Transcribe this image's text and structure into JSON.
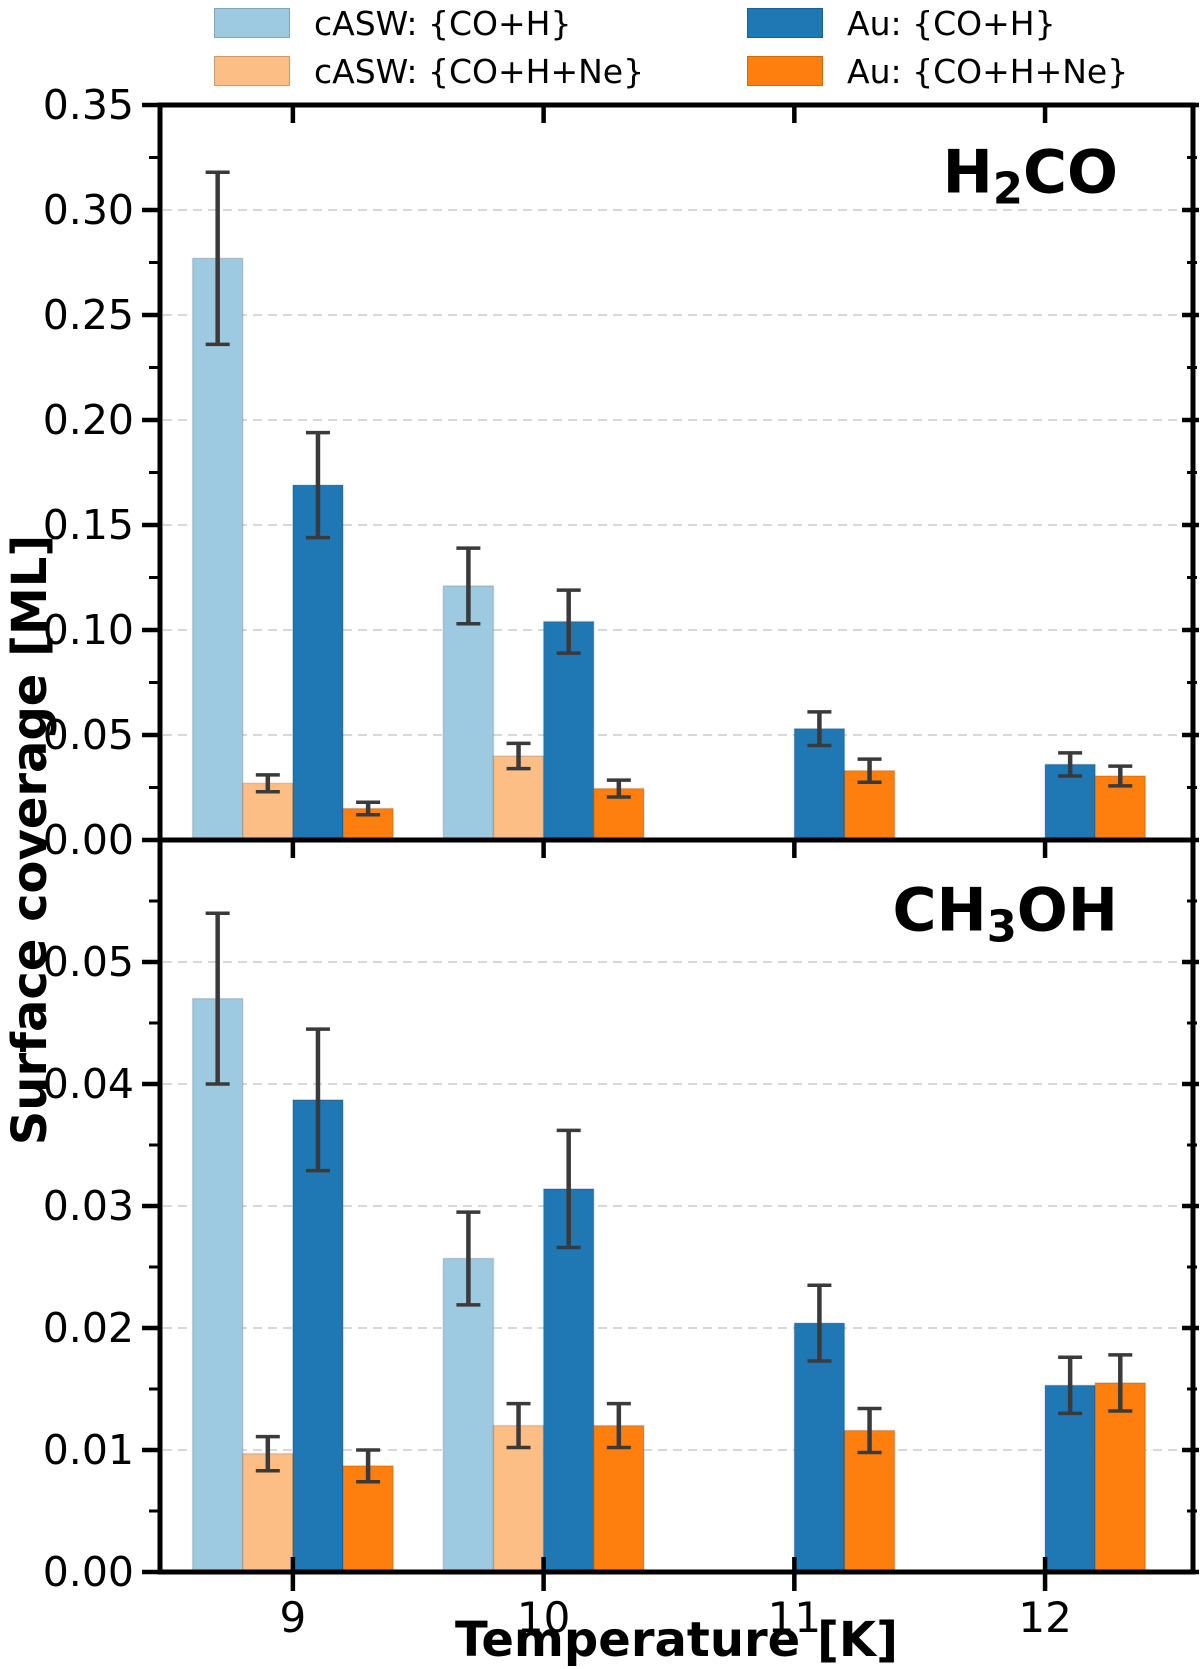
{
  "figure": {
    "x_axis_label": "Temperature [K]",
    "y_axis_label": "Surface coverage [ML]",
    "x_tick_labels": [
      "9",
      "10",
      "11",
      "12"
    ],
    "legend_position": "top"
  },
  "colors": {
    "casw_coh": "#9ecae1",
    "casw_cohne": "#fdbe85",
    "au_coh": "#1f77b4",
    "au_cohne": "#ff7f0e",
    "errorbar": "#3a3a3a",
    "grid": "#d8d8d8",
    "axis": "#000000"
  },
  "legend": {
    "items": [
      {
        "label": "cASW: {CO+H}",
        "color": "casw_coh"
      },
      {
        "label": "cASW: {CO+H+Ne}",
        "color": "casw_cohne"
      },
      {
        "label": "Au: {CO+H}",
        "color": "au_coh"
      },
      {
        "label": "Au: {CO+H+Ne}",
        "color": "au_cohne"
      }
    ]
  },
  "chart_data": [
    {
      "type": "bar",
      "panel": "top",
      "title": "H2CO",
      "formula": {
        "pre": "H",
        "sub": "2",
        "post": "CO"
      },
      "xlabel": "Temperature [K]",
      "ylabel": "Surface coverage [ML]",
      "x": [
        9,
        10,
        11,
        12
      ],
      "xlim": [
        8.47,
        12.59
      ],
      "ylim": [
        0,
        0.35
      ],
      "ytick_values": [
        0,
        0.05,
        0.1,
        0.15,
        0.2,
        0.25,
        0.3,
        0.35
      ],
      "ytick_labels": [
        "0.00",
        "0.05",
        "0.10",
        "0.15",
        "0.20",
        "0.25",
        "0.30",
        "0.35"
      ],
      "bar_width": 0.2,
      "bar_offsets": [
        -0.3,
        -0.1,
        0.1,
        0.3
      ],
      "grid": "horizontal-dashed",
      "series": [
        {
          "name": "cASW: {CO+H}",
          "color": "casw_coh",
          "values": [
            0.277,
            0.121,
            null,
            null
          ],
          "errors": [
            0.041,
            0.018,
            null,
            null
          ]
        },
        {
          "name": "cASW: {CO+H+Ne}",
          "color": "casw_cohne",
          "values": [
            0.027,
            0.04,
            null,
            null
          ],
          "errors": [
            0.004,
            0.006,
            null,
            null
          ]
        },
        {
          "name": "Au: {CO+H}",
          "color": "au_coh",
          "values": [
            0.169,
            0.104,
            0.053,
            0.036
          ],
          "errors": [
            0.025,
            0.015,
            0.008,
            0.0055
          ]
        },
        {
          "name": "Au: {CO+H+Ne}",
          "color": "au_cohne",
          "values": [
            0.015,
            0.0245,
            0.033,
            0.0305
          ],
          "errors": [
            0.003,
            0.004,
            0.0055,
            0.0047
          ]
        }
      ]
    },
    {
      "type": "bar",
      "panel": "bottom",
      "title": "CH3OH",
      "formula": {
        "pre": "CH",
        "sub": "3",
        "post": "OH"
      },
      "xlabel": "Temperature [K]",
      "ylabel": "Surface coverage [ML]",
      "x": [
        9,
        10,
        11,
        12
      ],
      "xlim": [
        8.47,
        12.59
      ],
      "ylim": [
        0,
        0.06
      ],
      "ytick_values": [
        0,
        0.01,
        0.02,
        0.03,
        0.04,
        0.05
      ],
      "ytick_labels": [
        "0.00",
        "0.01",
        "0.02",
        "0.03",
        "0.04",
        "0.05"
      ],
      "bar_width": 0.2,
      "bar_offsets": [
        -0.3,
        -0.1,
        0.1,
        0.3
      ],
      "grid": "horizontal-dashed",
      "series": [
        {
          "name": "cASW: {CO+H}",
          "color": "casw_coh",
          "values": [
            0.047,
            0.0257,
            null,
            null
          ],
          "errors": [
            0.007,
            0.0038,
            null,
            null
          ]
        },
        {
          "name": "cASW: {CO+H+Ne}",
          "color": "casw_cohne",
          "values": [
            0.0097,
            0.012,
            null,
            null
          ],
          "errors": [
            0.0014,
            0.0018,
            null,
            null
          ]
        },
        {
          "name": "Au: {CO+H}",
          "color": "au_coh",
          "values": [
            0.0387,
            0.0314,
            0.0204,
            0.0153
          ],
          "errors": [
            0.0058,
            0.0048,
            0.0031,
            0.0023
          ]
        },
        {
          "name": "Au: {CO+H+Ne}",
          "color": "au_cohne",
          "values": [
            0.0087,
            0.012,
            0.0116,
            0.0155
          ],
          "errors": [
            0.0013,
            0.0018,
            0.0018,
            0.0023
          ]
        }
      ]
    }
  ]
}
